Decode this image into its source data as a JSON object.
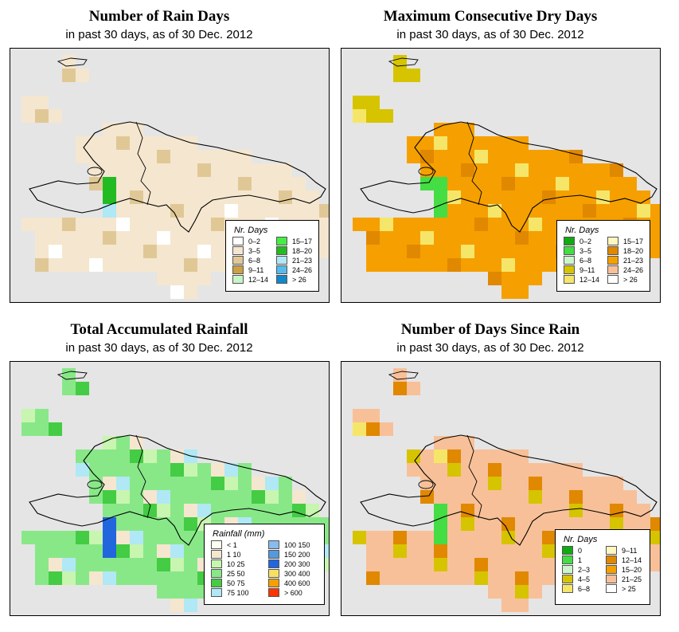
{
  "panels": [
    {
      "title": "Number of Rain Days",
      "subtitle": "in past 30 days, as of  30 Dec. 2012",
      "legend_title": "Nr. Days",
      "legend": [
        {
          "label": "0–2",
          "color": "#ffffff"
        },
        {
          "label": "3–5",
          "color": "#f5e6cf"
        },
        {
          "label": "6–8",
          "color": "#e0c896"
        },
        {
          "label": "9–11",
          "color": "#cca044"
        },
        {
          "label": "12–14",
          "color": "#c8f5c8"
        },
        {
          "label": "15–17",
          "color": "#44ee44"
        },
        {
          "label": "18–20",
          "color": "#22bb22"
        },
        {
          "label": "21–23",
          "color": "#b0e8f5"
        },
        {
          "label": "24–26",
          "color": "#55bbee"
        },
        {
          "label": "> 26",
          "color": "#1188cc"
        }
      ]
    },
    {
      "title": "Maximum Consecutive Dry Days",
      "subtitle": "in past 30 days, as of  30 Dec. 2012",
      "legend_title": "Nr. Days",
      "legend": [
        {
          "label": "0–2",
          "color": "#11aa11"
        },
        {
          "label": "3–5",
          "color": "#44dd44"
        },
        {
          "label": "6–8",
          "color": "#ccf5cc"
        },
        {
          "label": "9–11",
          "color": "#d6c400"
        },
        {
          "label": "12–14",
          "color": "#f5e66a"
        },
        {
          "label": "15–17",
          "color": "#fff6c0"
        },
        {
          "label": "18–20",
          "color": "#e08800"
        },
        {
          "label": "21–23",
          "color": "#f5a000"
        },
        {
          "label": "24–26",
          "color": "#f8c098"
        },
        {
          "label": "> 26",
          "color": "#ffffff"
        }
      ]
    },
    {
      "title": "Total Accumulated Rainfall",
      "subtitle": "in past 30 days, as of  30 Dec. 2012",
      "legend_title": "Rainfall (mm)",
      "legend": [
        {
          "label": "< 1",
          "color": "#fffff0"
        },
        {
          "label": "1    10",
          "color": "#f5e6cf"
        },
        {
          "label": "10    25",
          "color": "#c8f5b0"
        },
        {
          "label": "25    50",
          "color": "#88e888"
        },
        {
          "label": "50    75",
          "color": "#44cc44"
        },
        {
          "label": "75    100",
          "color": "#b0e8f5"
        },
        {
          "label": "100    150",
          "color": "#88bbee"
        },
        {
          "label": "150    200",
          "color": "#5599dd"
        },
        {
          "label": "200    300",
          "color": "#2266dd"
        },
        {
          "label": "300    400",
          "color": "#f5e066"
        },
        {
          "label": "400    600",
          "color": "#f5a000"
        },
        {
          "label": "> 600",
          "color": "#ff3300"
        }
      ]
    },
    {
      "title": "Number of Days Since Rain",
      "subtitle": "in past 30 days, as of  30 Dec. 2012",
      "legend_title": "Nr. Days",
      "legend": [
        {
          "label": "0",
          "color": "#11aa11"
        },
        {
          "label": "1",
          "color": "#44dd44"
        },
        {
          "label": "2–3",
          "color": "#ccf5cc"
        },
        {
          "label": "4–5",
          "color": "#d6c400"
        },
        {
          "label": "6–8",
          "color": "#f5e66a"
        },
        {
          "label": "9–11",
          "color": "#fff6c0"
        },
        {
          "label": "12–14",
          "color": "#e08800"
        },
        {
          "label": "15–20",
          "color": "#f5a000"
        },
        {
          "label": "21–25",
          "color": "#f8c098"
        },
        {
          "label": "> 25",
          "color": "#ffffff"
        }
      ]
    }
  ]
}
